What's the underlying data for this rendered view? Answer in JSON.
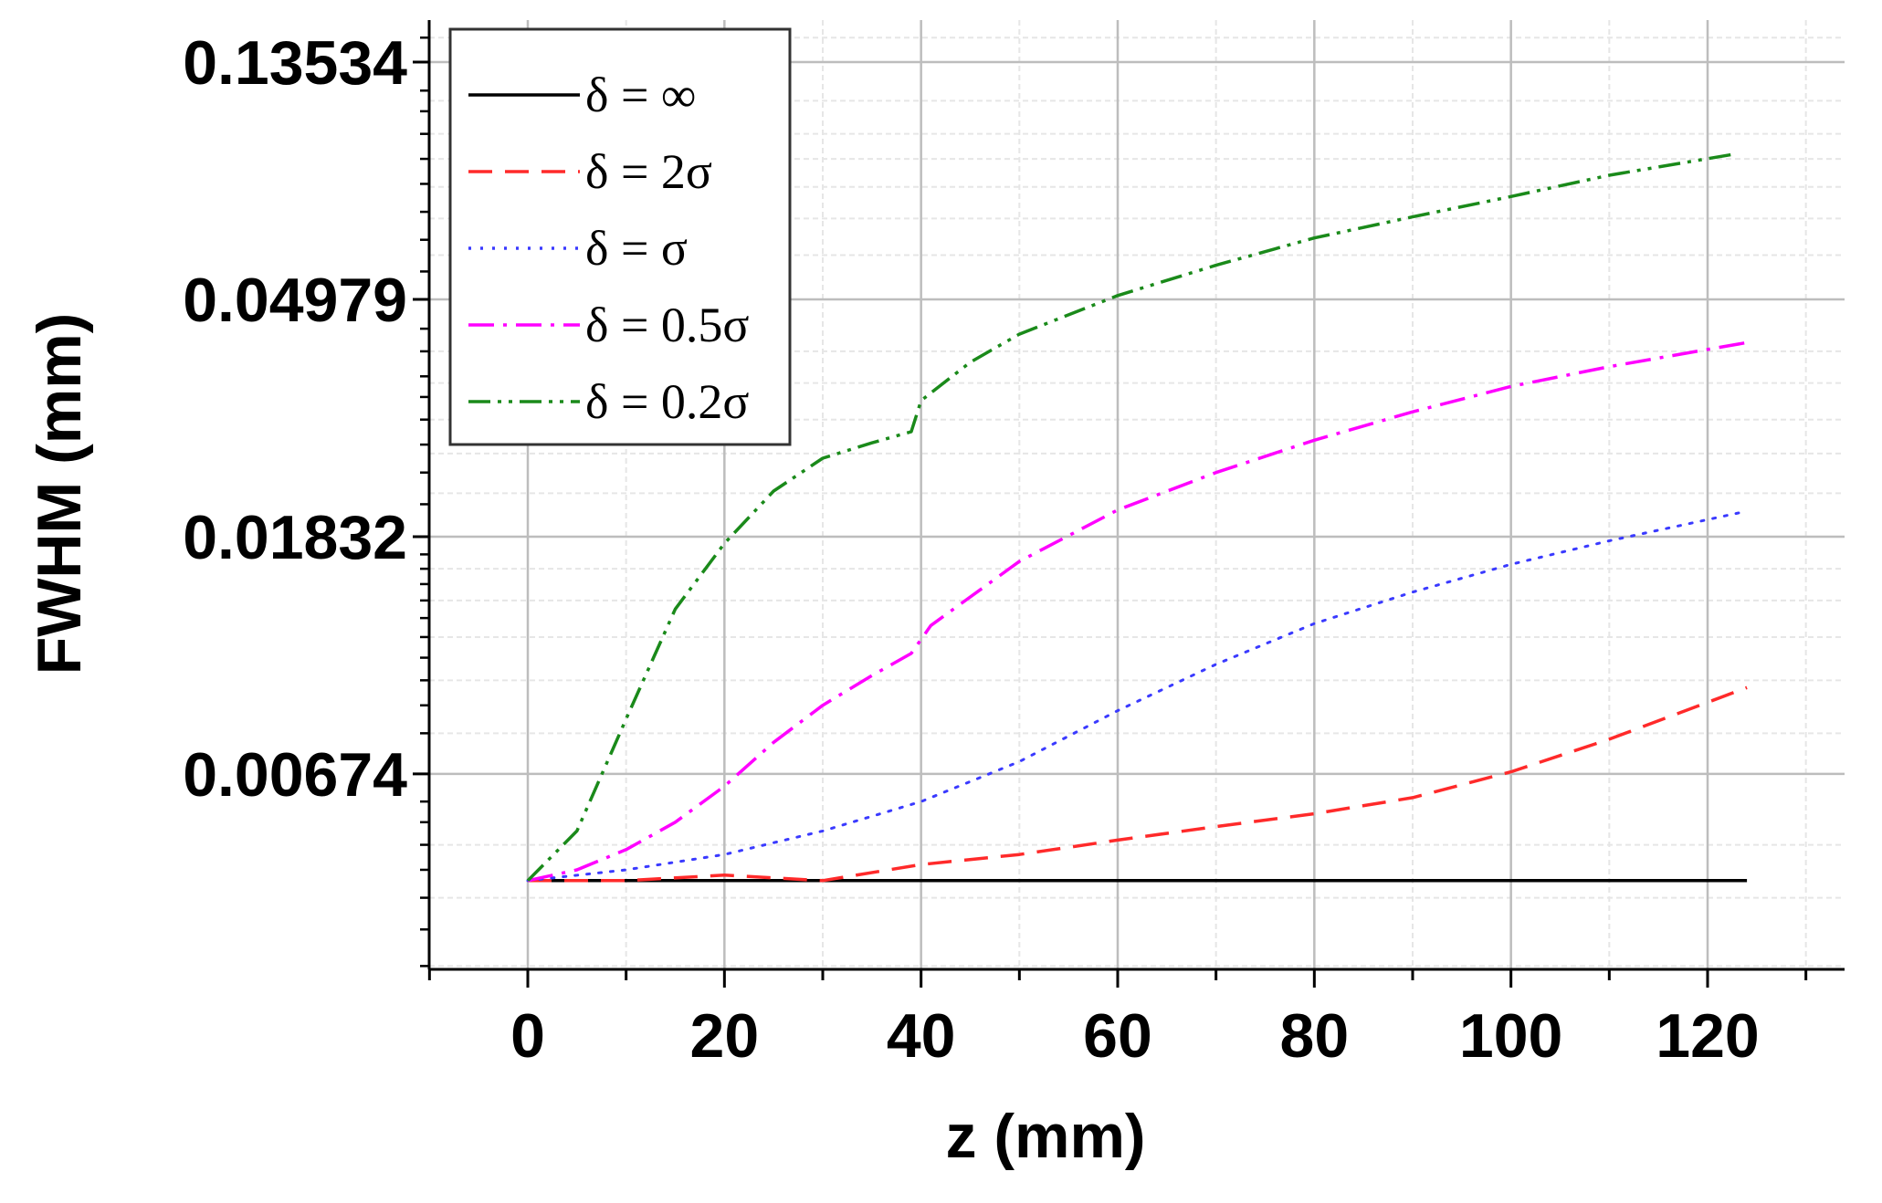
{
  "chart_data": {
    "type": "line",
    "xlabel": "z (mm)",
    "ylabel": "FWHM (mm)",
    "x_scale": "linear",
    "y_scale": "log",
    "xlim": [
      -10,
      135
    ],
    "ylim": [
      0.002,
      0.18
    ],
    "x_ticks": [
      "0",
      "20",
      "40",
      "60",
      "80",
      "100",
      "120"
    ],
    "x_tick_values": [
      0,
      20,
      40,
      60,
      80,
      100,
      120
    ],
    "y_ticks": [
      "0.00674",
      "0.01832",
      "0.04979",
      "0.13534"
    ],
    "y_tick_values": [
      0.00674,
      0.01832,
      0.04979,
      0.13534
    ],
    "grid": true,
    "legend_position": "top-left",
    "series": [
      {
        "name": "δ = ∞",
        "color": "#000000",
        "style": "solid",
        "x": [
          0,
          20,
          40,
          60,
          80,
          100,
          124
        ],
        "y": [
          0.0043,
          0.0043,
          0.0043,
          0.0043,
          0.0043,
          0.0043,
          0.0043
        ]
      },
      {
        "name": "δ = 2σ",
        "color": "#ff2a2a",
        "style": "dash",
        "x": [
          0,
          10,
          20,
          30,
          40,
          50,
          60,
          70,
          80,
          90,
          100,
          110,
          124
        ],
        "y": [
          0.0043,
          0.0043,
          0.0044,
          0.0043,
          0.0046,
          0.0048,
          0.0051,
          0.0054,
          0.0057,
          0.0061,
          0.0068,
          0.0078,
          0.0097
        ]
      },
      {
        "name": "δ = σ",
        "color": "#3a3aff",
        "style": "dot",
        "x": [
          0,
          10,
          20,
          30,
          40,
          50,
          60,
          70,
          80,
          90,
          100,
          110,
          124
        ],
        "y": [
          0.0043,
          0.0045,
          0.0048,
          0.0053,
          0.006,
          0.0071,
          0.0088,
          0.0107,
          0.0127,
          0.0145,
          0.0163,
          0.018,
          0.0204
        ]
      },
      {
        "name": "δ = 0.5σ",
        "color": "#ff00ff",
        "style": "dashdot",
        "x": [
          0,
          5,
          10,
          15,
          20,
          25,
          30,
          35,
          39,
          41,
          50,
          60,
          70,
          80,
          90,
          100,
          110,
          124
        ],
        "y": [
          0.0043,
          0.0045,
          0.0049,
          0.0055,
          0.0064,
          0.0077,
          0.009,
          0.0102,
          0.0112,
          0.0126,
          0.0165,
          0.0205,
          0.024,
          0.0275,
          0.031,
          0.0345,
          0.0375,
          0.0415
        ]
      },
      {
        "name": "δ = 0.2σ",
        "color": "#1a8a1a",
        "style": "dashdotdot",
        "x": [
          0,
          5,
          10,
          15,
          20,
          25,
          30,
          35,
          39,
          40,
          45,
          50,
          60,
          70,
          80,
          90,
          100,
          110,
          123
        ],
        "y": [
          0.0043,
          0.0053,
          0.0085,
          0.0135,
          0.0178,
          0.0222,
          0.0255,
          0.0272,
          0.0285,
          0.0325,
          0.0382,
          0.043,
          0.0506,
          0.0575,
          0.0645,
          0.0705,
          0.0768,
          0.084,
          0.092
        ]
      }
    ]
  }
}
